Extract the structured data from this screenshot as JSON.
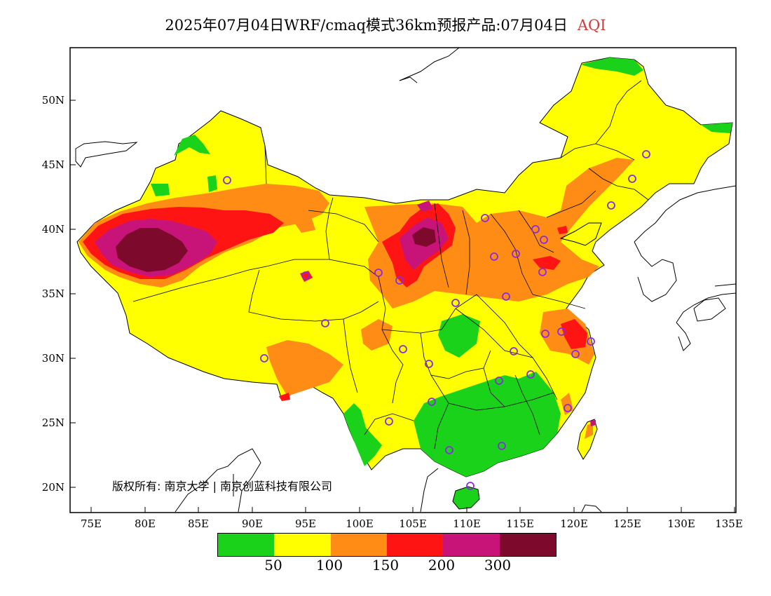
{
  "title": {
    "main": "2025年07月04日WRF/cmaq模式36km预报产品:07月04日",
    "variable": "AQI"
  },
  "axes": {
    "lat_labels": [
      "50N",
      "45N",
      "40N",
      "35N",
      "30N",
      "25N",
      "20N"
    ],
    "lon_labels": [
      "75E",
      "80E",
      "85E",
      "90E",
      "95E",
      "100E",
      "105E",
      "110E",
      "115E",
      "120E",
      "125E",
      "130E",
      "135E"
    ]
  },
  "copyright": "版权所有: 南京大学 | 南京创蓝科技有限公司",
  "legend": {
    "colors": [
      "#19d219",
      "#ffff00",
      "#ff8c14",
      "#ff1414",
      "#c81478",
      "#7d0a2d"
    ],
    "labels": [
      "50",
      "100",
      "150",
      "200",
      "300"
    ]
  },
  "colors": {
    "good": "#19d219",
    "moderate": "#ffff00",
    "sensitive": "#ff8c14",
    "unhealthy": "#ff1414",
    "very_unhealthy": "#c81478",
    "hazardous": "#7d0a2d",
    "station_marker": "#8a2be2",
    "title_accent": "#d23a3a"
  },
  "icons": {
    "station": "circle-marker-icon"
  }
}
